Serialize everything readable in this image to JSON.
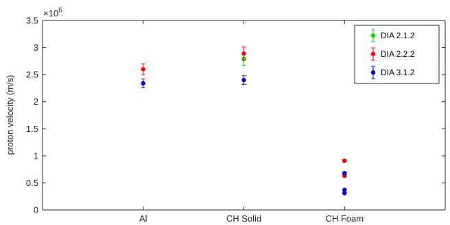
{
  "chart_data": {
    "type": "scatter",
    "title": "",
    "xlabel": "",
    "ylabel": "proton velocity (m/s)",
    "y_multiplier": "×10",
    "y_exponent": "6",
    "categories": [
      "Al",
      "CH Solid",
      "CH Foam"
    ],
    "xlim": [
      0,
      4
    ],
    "ylim": [
      0,
      3.5
    ],
    "yticks": [
      "0",
      "0.5",
      "1",
      "1.5",
      "2",
      "2.5",
      "3",
      "3.5"
    ],
    "grid": false,
    "error_bars": true,
    "legend_position": "top-right",
    "series": [
      {
        "name": "DIA 2.1.2",
        "color": "#00e000",
        "points": [
          {
            "x": 2,
            "y": 2.79,
            "err": 0.12
          }
        ]
      },
      {
        "name": "DIA 2.2.2",
        "color": "#ff0000",
        "points": [
          {
            "x": 1,
            "y": 2.6,
            "err": 0.1
          },
          {
            "x": 2,
            "y": 2.89,
            "err": 0.12
          },
          {
            "x": 3,
            "y": 0.91,
            "err": 0.02
          },
          {
            "x": 3,
            "y": 0.63,
            "err": 0.02
          }
        ]
      },
      {
        "name": "DIA 3.1.2",
        "color": "#0000e0",
        "points": [
          {
            "x": 1,
            "y": 2.34,
            "err": 0.08
          },
          {
            "x": 2,
            "y": 2.4,
            "err": 0.08
          },
          {
            "x": 3,
            "y": 0.68,
            "err": 0.02
          },
          {
            "x": 3,
            "y": 0.37,
            "err": 0.015
          },
          {
            "x": 3,
            "y": 0.31,
            "err": 0.01
          }
        ]
      }
    ]
  }
}
